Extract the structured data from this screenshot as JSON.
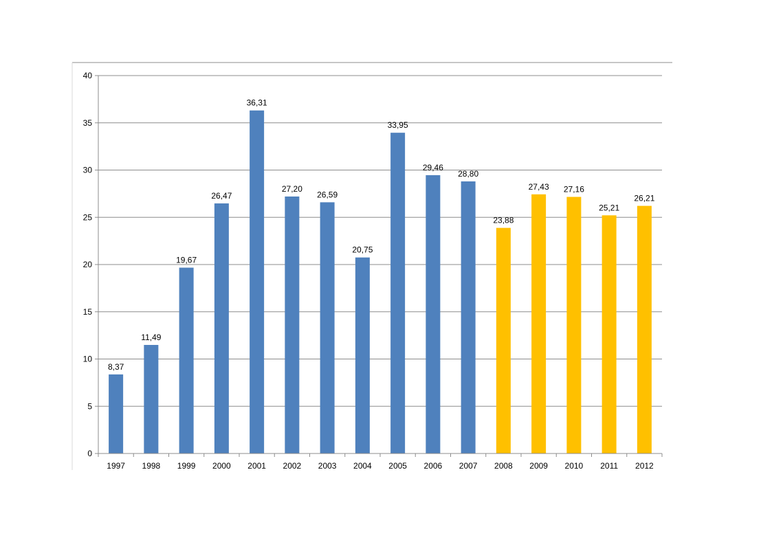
{
  "chart_data": {
    "type": "bar",
    "title": "",
    "xlabel": "",
    "ylabel": "",
    "ylim": [
      0,
      40
    ],
    "yticks": [
      "0",
      "5",
      "10",
      "15",
      "20",
      "25",
      "30",
      "35",
      "40"
    ],
    "grid": true,
    "legend": "none",
    "categories": [
      "1997",
      "1998",
      "1999",
      "2000",
      "2001",
      "2002",
      "2003",
      "2004",
      "2005",
      "2006",
      "2007",
      "2008",
      "2009",
      "2010",
      "2011",
      "2012"
    ],
    "values": [
      8.37,
      11.49,
      19.67,
      26.47,
      36.31,
      27.2,
      26.59,
      20.75,
      33.95,
      29.46,
      28.8,
      23.88,
      27.43,
      27.16,
      25.21,
      26.21
    ],
    "value_labels": [
      "8,37",
      "11,49",
      "19,67",
      "26,47",
      "36,31",
      "27,20",
      "26,59",
      "20,75",
      "33,95",
      "29,46",
      "28,80",
      "23,88",
      "27,43",
      "27,16",
      "25,21",
      "26,21"
    ],
    "bar_colors": [
      "#4f81bd",
      "#4f81bd",
      "#4f81bd",
      "#4f81bd",
      "#4f81bd",
      "#4f81bd",
      "#4f81bd",
      "#4f81bd",
      "#4f81bd",
      "#4f81bd",
      "#4f81bd",
      "#ffc000",
      "#ffc000",
      "#ffc000",
      "#ffc000",
      "#ffc000"
    ],
    "colors": {
      "primary": "#4f81bd",
      "highlight": "#ffc000",
      "grid": "#8c8c8c",
      "axis": "#8c8c8c"
    }
  }
}
